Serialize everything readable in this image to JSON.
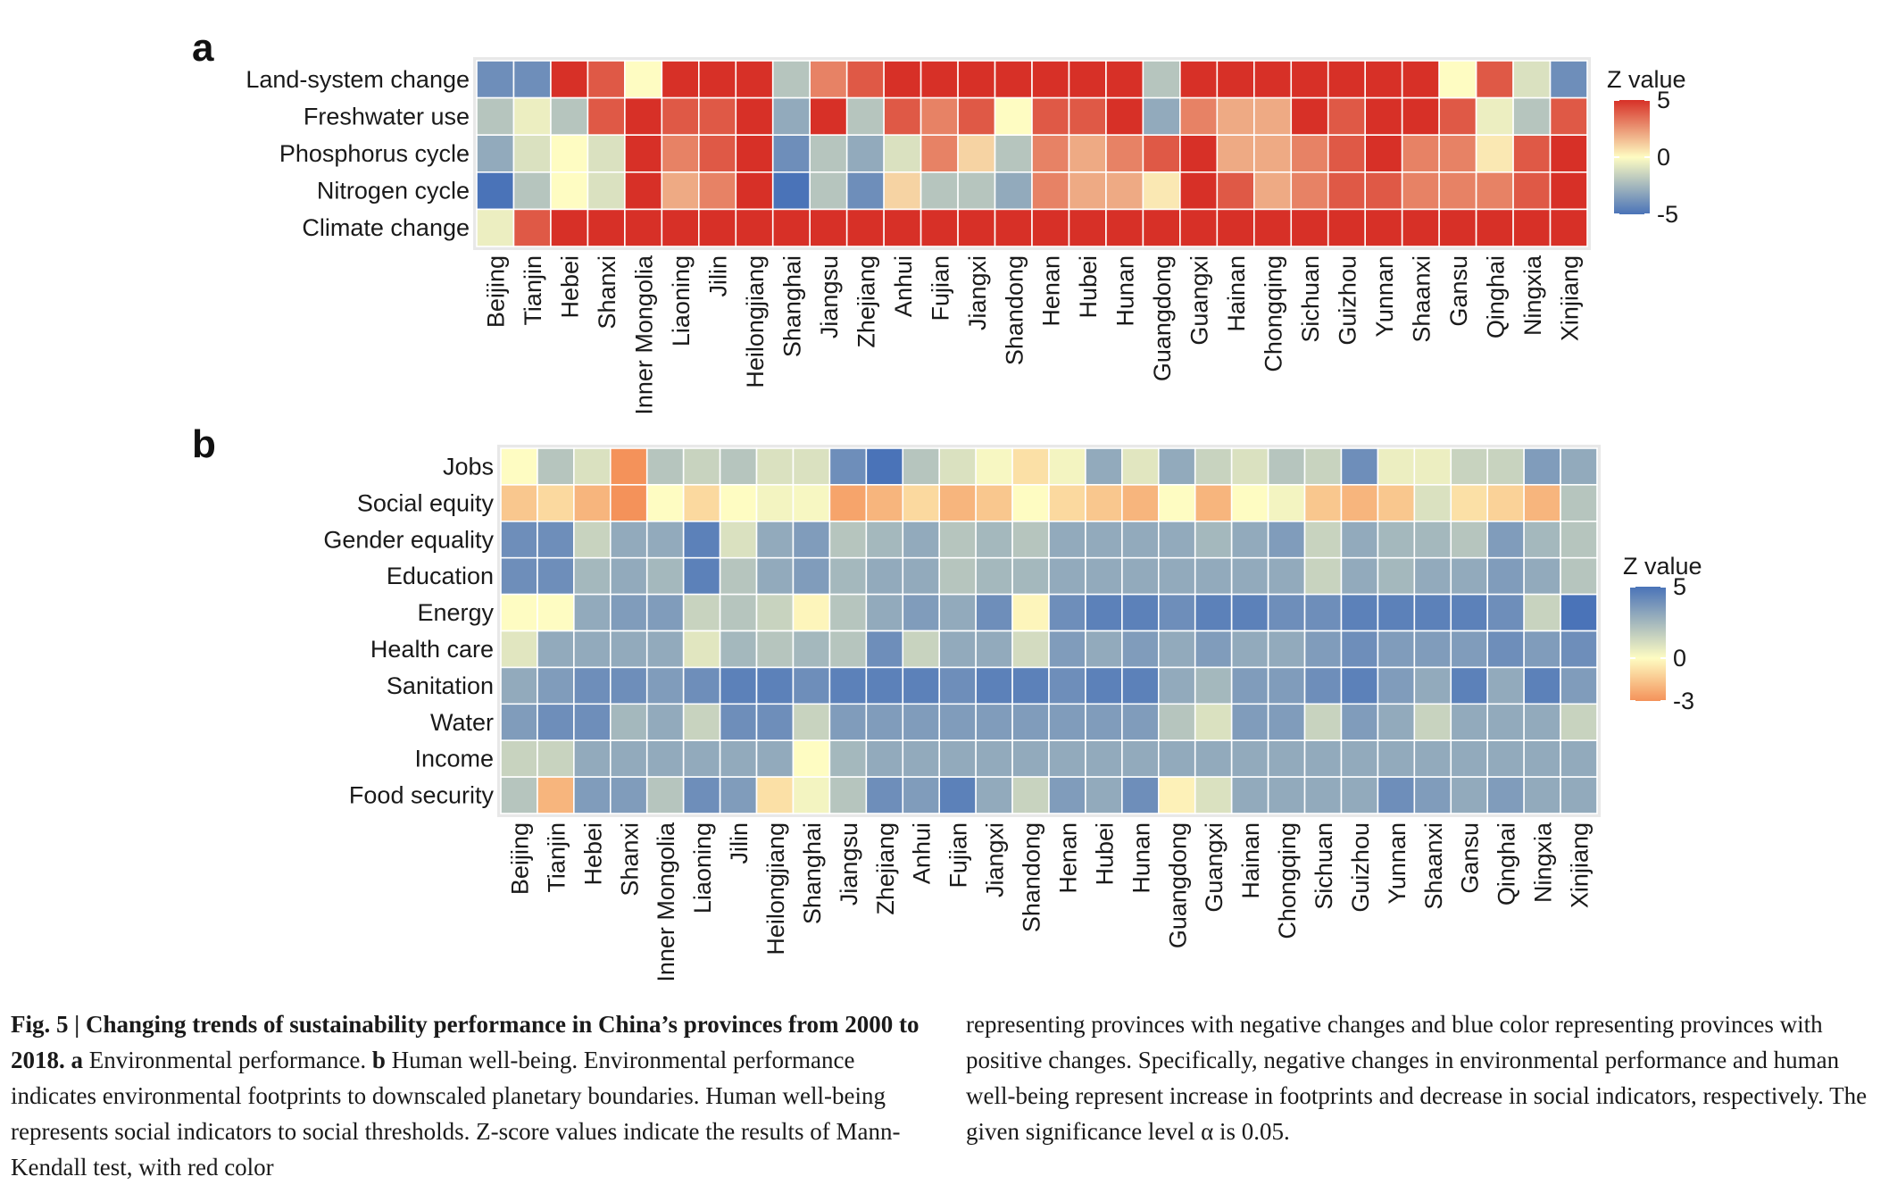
{
  "chart_data": [
    {
      "type": "heatmap",
      "panel": "a",
      "rows": [
        "Land-system change",
        "Freshwater use",
        "Phosphorus cycle",
        "Nitrogen cycle",
        "Climate change"
      ],
      "columns": [
        "Beijing",
        "Tianjin",
        "Hebei",
        "Shanxi",
        "Inner Mongolia",
        "Liaoning",
        "Jilin",
        "Heilongjiang",
        "Shanghai",
        "Jiangsu",
        "Zhejiang",
        "Anhui",
        "Fujian",
        "Jiangxi",
        "Shandong",
        "Henan",
        "Hubei",
        "Hunan",
        "Guangdong",
        "Guangxi",
        "Hainan",
        "Chongqing",
        "Sichuan",
        "Guizhou",
        "Yunnan",
        "Shaanxi",
        "Gansu",
        "Qinghai",
        "Ningxia",
        "Xinjiang"
      ],
      "values": [
        [
          -4,
          -4,
          5,
          4,
          0,
          5,
          5,
          5,
          -2,
          3,
          4,
          5,
          5,
          5,
          5,
          5,
          5,
          5,
          -2,
          5,
          5,
          5,
          5,
          5,
          5,
          5,
          0,
          4,
          -1,
          -4
        ],
        [
          -2,
          -0.5,
          -2,
          4,
          5,
          4,
          4,
          5,
          -3,
          5,
          -2,
          4,
          3,
          4,
          0,
          4,
          4,
          5,
          -3,
          3,
          2,
          2,
          5,
          4,
          5,
          5,
          4,
          -0.5,
          -2,
          4
        ],
        [
          -3,
          -1,
          0,
          -1,
          5,
          3,
          4,
          5,
          -4,
          -2,
          -3,
          -1,
          3,
          1,
          -2,
          3,
          2,
          3,
          4,
          5,
          2,
          2,
          3,
          4,
          5,
          3,
          3,
          0.5,
          4,
          5
        ],
        [
          -5,
          -2,
          0,
          -1,
          5,
          2,
          3,
          5,
          -5,
          -2,
          -4,
          1,
          -2,
          -2,
          -3,
          3,
          2,
          2,
          0.5,
          5,
          4,
          2,
          3,
          4,
          4,
          3,
          3,
          3,
          4,
          5
        ],
        [
          -0.5,
          4,
          5,
          5,
          5,
          5,
          5,
          5,
          5,
          5,
          5.5,
          5,
          5,
          5.5,
          5,
          5,
          5,
          5,
          5,
          5,
          5,
          5,
          5,
          5.5,
          5,
          5,
          5,
          5,
          5,
          5
        ]
      ],
      "legend": {
        "title": "Z value",
        "ticks": [
          "5",
          "0",
          "-5"
        ],
        "range": [
          -5,
          5
        ],
        "low_color": "#4a73b8",
        "mid_color": "#fefcc2",
        "high_color": "#d73027"
      }
    },
    {
      "type": "heatmap",
      "panel": "b",
      "rows": [
        "Jobs",
        "Social equity",
        "Gender equality",
        "Education",
        "Energy",
        "Health care",
        "Sanitation",
        "Water",
        "Income",
        "Food security"
      ],
      "columns": [
        "Beijing",
        "Tianjin",
        "Hebei",
        "Shanxi",
        "Inner Mongolia",
        "Liaoning",
        "Jilin",
        "Heilongjiang",
        "Shanghai",
        "Jiangsu",
        "Zhejiang",
        "Anhui",
        "Fujian",
        "Jiangxi",
        "Shandong",
        "Henan",
        "Hubei",
        "Hunan",
        "Guangdong",
        "Guangxi",
        "Hainan",
        "Chongqing",
        "Sichuan",
        "Guizhou",
        "Yunnan",
        "Shaanxi",
        "Gansu",
        "Qinghai",
        "Ningxia",
        "Xinjiang"
      ],
      "values": [
        [
          0,
          2,
          1,
          -3,
          2,
          1.5,
          2,
          1,
          1,
          4,
          5,
          2,
          1,
          0.2,
          -0.8,
          0.3,
          3,
          0.8,
          3,
          1.5,
          1,
          2,
          1.5,
          4,
          0.5,
          0.5,
          1.5,
          1.5,
          3.5,
          3
        ],
        [
          -1.5,
          -1,
          -2,
          -3,
          0,
          -1,
          0,
          0.3,
          0.2,
          -2.5,
          -2,
          -1,
          -2,
          -1.5,
          0,
          -1,
          -1.5,
          -2,
          0,
          -2,
          0,
          0.3,
          -1.5,
          -2,
          -1.5,
          1,
          -0.8,
          -1.2,
          -2,
          2
        ],
        [
          4,
          4,
          1.5,
          3,
          3,
          4.5,
          1,
          3,
          3.5,
          2,
          2.5,
          3,
          2,
          2.5,
          2,
          3,
          3,
          3,
          3,
          2.5,
          3,
          3.5,
          1.5,
          3,
          2.5,
          2.5,
          2,
          3.5,
          2.5,
          2
        ],
        [
          4,
          4,
          2.5,
          3,
          2.5,
          4.5,
          2,
          3,
          3.5,
          2.5,
          3,
          3,
          2,
          2.5,
          2.5,
          3,
          3,
          3,
          3,
          3,
          3,
          3,
          1.5,
          3,
          2.5,
          3,
          3,
          3.5,
          3,
          2
        ],
        [
          0,
          0,
          3,
          3.5,
          3.5,
          1.5,
          2,
          1.5,
          -0.2,
          2,
          3,
          3.5,
          3,
          4,
          -0.2,
          4,
          4.5,
          4.5,
          4,
          4.5,
          4.5,
          4,
          4,
          4.5,
          4.5,
          4.5,
          4.5,
          4,
          1.5,
          5
        ],
        [
          0.8,
          3,
          3,
          3,
          3,
          0.8,
          2.5,
          2,
          2.5,
          2,
          4,
          1.5,
          3,
          3,
          1.2,
          3.5,
          3,
          3.5,
          3,
          3.5,
          3,
          3,
          3.5,
          4,
          3.5,
          3.5,
          3.5,
          4,
          3.5,
          4
        ],
        [
          3,
          3.5,
          4,
          4,
          3.5,
          4,
          4.5,
          4.5,
          4,
          4.5,
          4.5,
          4.5,
          4,
          4.5,
          4.5,
          4,
          4.5,
          4.5,
          3,
          2.5,
          3.5,
          3.5,
          4,
          4.5,
          3.5,
          3,
          4.5,
          3,
          4.5,
          3.5
        ],
        [
          3.5,
          4,
          4,
          2.5,
          3,
          1.5,
          4,
          4,
          1.5,
          3.5,
          3.5,
          3.5,
          3.5,
          3.5,
          3.5,
          3.5,
          3.5,
          3.5,
          2,
          1,
          3.5,
          3.5,
          1.5,
          3.5,
          3,
          1.5,
          3,
          3,
          3,
          1.5
        ],
        [
          1.5,
          1.5,
          3,
          3,
          3,
          3,
          3,
          3,
          0,
          2.5,
          3,
          3,
          3,
          3,
          3,
          3,
          3,
          3,
          3,
          3,
          3,
          3,
          3,
          3,
          3,
          3,
          3,
          3,
          3,
          3
        ],
        [
          2,
          -2,
          3.5,
          3.5,
          2,
          4,
          3.5,
          -0.8,
          0.3,
          2,
          4,
          3.5,
          4.5,
          3,
          1.5,
          3.5,
          3,
          4,
          -0.3,
          1,
          3,
          3,
          3,
          3,
          4,
          3.5,
          3,
          3.5,
          3,
          3
        ]
      ],
      "legend": {
        "title": "Z value",
        "ticks": [
          "5",
          "0",
          "-3"
        ],
        "range": [
          -3,
          5
        ],
        "low_color": "#f4925a",
        "mid_color": "#fefcc2",
        "high_color": "#4a73b8"
      }
    }
  ],
  "panels": {
    "a": "a",
    "b": "b"
  },
  "caption": {
    "fig_number": "Fig. 5 | ",
    "fig_title": "Changing trends of sustainability performance in China’s provinces from 2000 to 2018. ",
    "label_a": "a",
    "text_a": " Environmental performance. ",
    "label_b": "b",
    "text_b": " Human well-being. Environmental performance indicates environmental footprints to downscaled planetary boundaries. Human well-being represents social indicators to social thresholds. Z-score values indicate the results of Mann-Kendall test, with red color",
    "text_col2": "representing provinces with negative changes and blue color representing provinces with positive changes. Specifically, negative changes in environmental performance and human well-being represent increase in footprints and decrease in social indicators, respectively. The given significance level α is 0.05."
  }
}
